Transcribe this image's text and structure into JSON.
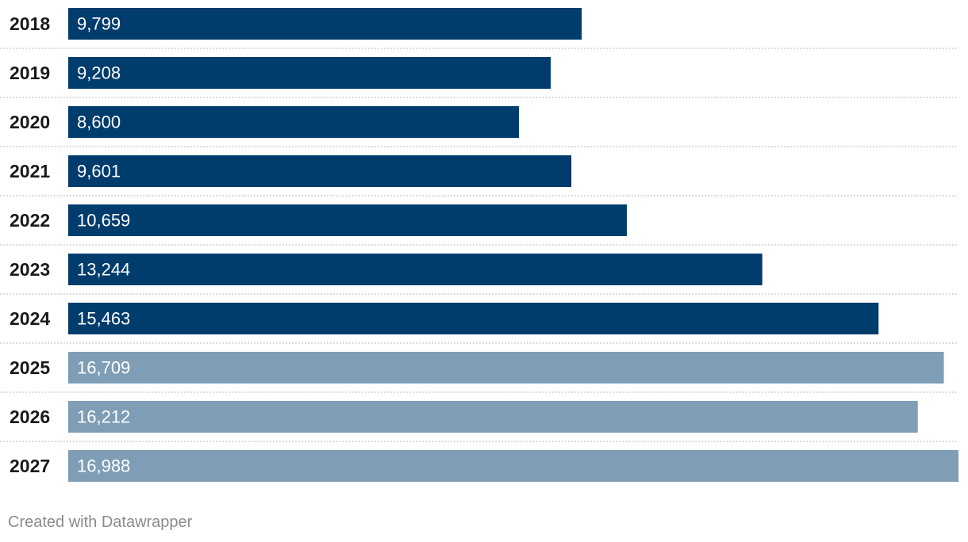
{
  "chart_data": {
    "type": "bar",
    "orientation": "horizontal",
    "categories": [
      "2018",
      "2019",
      "2020",
      "2021",
      "2022",
      "2023",
      "2024",
      "2025",
      "2026",
      "2027"
    ],
    "values": [
      9799,
      9208,
      8600,
      9601,
      10659,
      13244,
      15463,
      16709,
      16212,
      16988
    ],
    "value_labels": [
      "9,799",
      "9,208",
      "8,600",
      "9,601",
      "10,659",
      "13,244",
      "15,463",
      "16,709",
      "16,212",
      "16,988"
    ],
    "bar_status": [
      "actual",
      "actual",
      "actual",
      "actual",
      "actual",
      "actual",
      "actual",
      "forecast",
      "forecast",
      "forecast"
    ],
    "colors": {
      "actual": "#003c6c",
      "forecast": "#7f9eb6"
    },
    "xlim": [
      0,
      16988
    ],
    "grid": false,
    "title": "",
    "xlabel": "",
    "ylabel": ""
  },
  "footer": {
    "credit": "Created with Datawrapper"
  }
}
